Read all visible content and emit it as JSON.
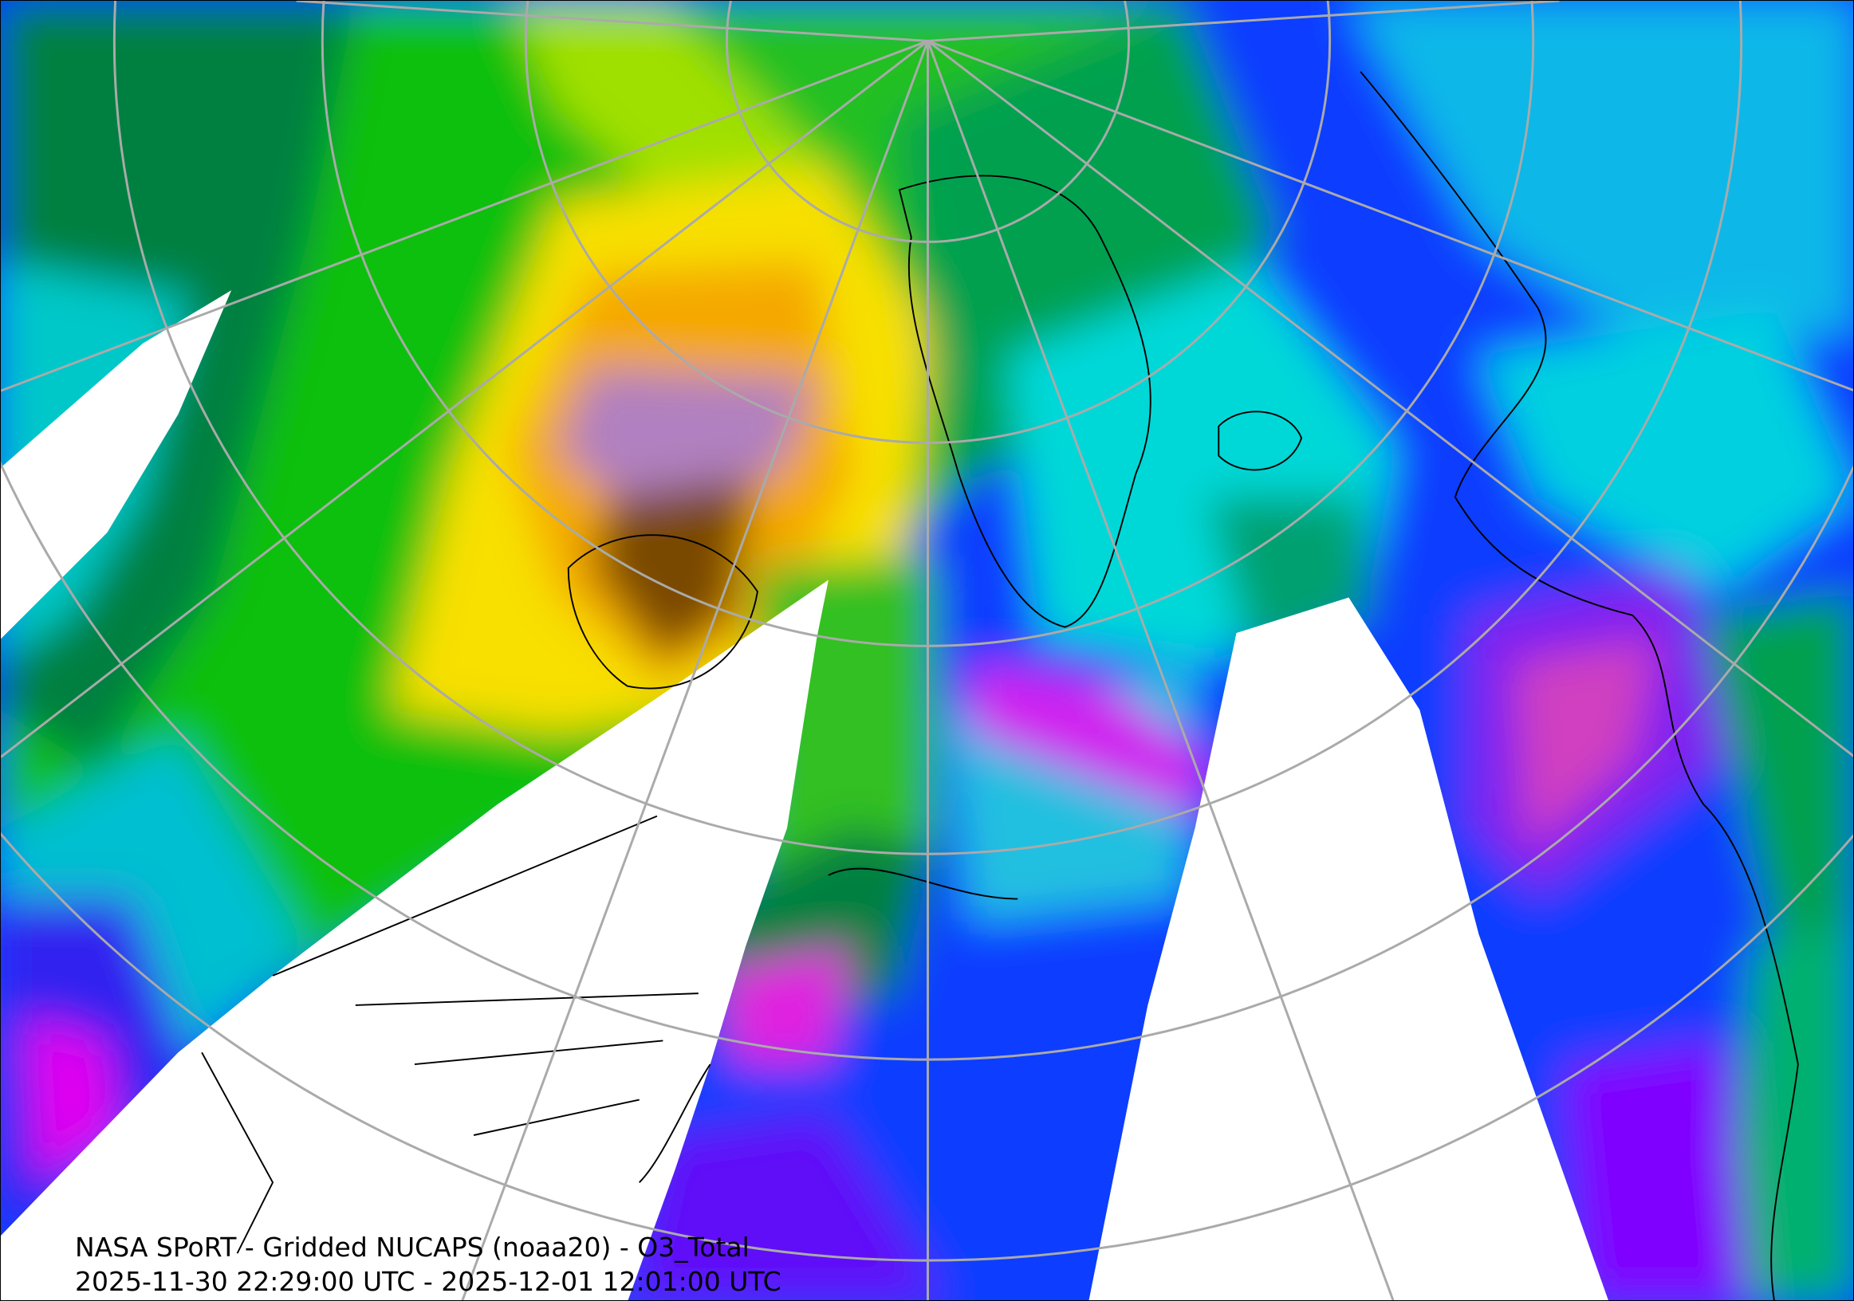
{
  "title": {
    "line1": "NASA SPoRT - Gridded NUCAPS (noaa20) - O3_Total",
    "line2": "2025-11-30 22:29:00 UTC - 2025-12-01 12:01:00 UTC"
  },
  "map": {
    "projection": "polar stereographic (north pole)",
    "graticule_color": "#aaaaaa",
    "coastline_color": "#000000",
    "no_data_color": "#ffffff",
    "colors": {
      "green": "#00cc00",
      "dark_green": "#007f3f",
      "yellow": "#ffdd00",
      "orange": "#f0a000",
      "brown": "#8b5a00",
      "cyan": "#00e5e5",
      "blue": "#0a3cff",
      "purple": "#7a00ff",
      "magenta": "#ff00ff",
      "light_purple": "#c896d8"
    }
  }
}
